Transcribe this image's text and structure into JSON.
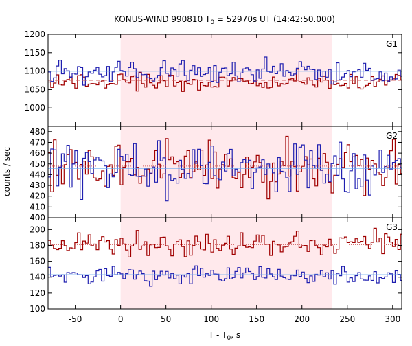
{
  "chart_data": {
    "type": "line",
    "title": {
      "prefix": "KONUS-WIND 990810 T",
      "sub": "0",
      "suffix": " = 52970s UT (14:42:50.000)"
    },
    "xlabel": {
      "prefix": "T - T",
      "sub": "0",
      "suffix": ", s"
    },
    "ylabel": "counts / sec",
    "xlim": [
      -80,
      310
    ],
    "x_ticks": [
      -50,
      0,
      50,
      100,
      150,
      200,
      250,
      300
    ],
    "shaded_interval": [
      0,
      233
    ],
    "colors": {
      "blue": "#2020b0",
      "red": "#a00000",
      "blue_bg": "#6aaaf0",
      "red_bg": "#d06060",
      "shade": "#ffe9ec"
    },
    "bin_width": 2.944,
    "panels": [
      {
        "label": "G1",
        "ylim": [
          950,
          1200
        ],
        "y_ticks": [
          1000,
          1050,
          1100,
          1150,
          1200
        ],
        "blue_level": 1098,
        "red_level": 1070,
        "blue_background": 1100,
        "red_background": 1075,
        "blue_sigma": 16,
        "red_sigma": 12
      },
      {
        "label": "G2",
        "ylim": [
          400,
          485
        ],
        "y_ticks": [
          400,
          410,
          420,
          430,
          440,
          450,
          460,
          470,
          480
        ],
        "blue_level": 447,
        "red_level": 448,
        "blue_background": 446,
        "red_background": 448,
        "blue_sigma": 12,
        "red_sigma": 12
      },
      {
        "label": "G3",
        "ylim": [
          100,
          215
        ],
        "y_ticks": [
          100,
          120,
          140,
          160,
          180,
          200
        ],
        "blue_level": 142,
        "red_level": 182,
        "blue_background": 143,
        "red_background": 181,
        "blue_sigma": 6,
        "red_sigma": 7
      }
    ]
  }
}
